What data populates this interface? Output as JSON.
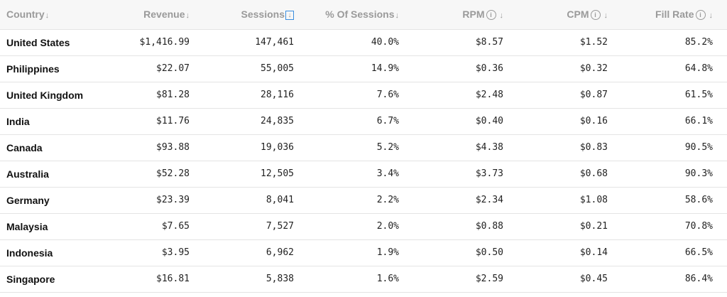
{
  "columns": [
    {
      "label": "Country",
      "sort_icon": "arrow-down-icon",
      "info": false
    },
    {
      "label": "Revenue",
      "sort_icon": "arrow-down-icon",
      "info": false
    },
    {
      "label": "Sessions",
      "sort_icon": "boxed-arrow-down-icon",
      "info": false
    },
    {
      "label": "% Of Sessions",
      "sort_icon": "arrow-down-icon",
      "info": false
    },
    {
      "label": "RPM",
      "sort_icon": "arrow-down-icon",
      "info": true
    },
    {
      "label": "CPM",
      "sort_icon": "arrow-down-icon",
      "info": true
    },
    {
      "label": "Fill Rate",
      "sort_icon": "arrow-down-icon",
      "info": true
    }
  ],
  "glyphs": {
    "arrow": "↓",
    "info": "i"
  },
  "rows": [
    {
      "country": "United States",
      "revenue": "$1,416.99",
      "sessions": "147,461",
      "pct_sessions": "40.0%",
      "rpm": "$8.57",
      "cpm": "$1.52",
      "fill_rate": "85.2%"
    },
    {
      "country": "Philippines",
      "revenue": "$22.07",
      "sessions": "55,005",
      "pct_sessions": "14.9%",
      "rpm": "$0.36",
      "cpm": "$0.32",
      "fill_rate": "64.8%"
    },
    {
      "country": "United Kingdom",
      "revenue": "$81.28",
      "sessions": "28,116",
      "pct_sessions": "7.6%",
      "rpm": "$2.48",
      "cpm": "$0.87",
      "fill_rate": "61.5%"
    },
    {
      "country": "India",
      "revenue": "$11.76",
      "sessions": "24,835",
      "pct_sessions": "6.7%",
      "rpm": "$0.40",
      "cpm": "$0.16",
      "fill_rate": "66.1%"
    },
    {
      "country": "Canada",
      "revenue": "$93.88",
      "sessions": "19,036",
      "pct_sessions": "5.2%",
      "rpm": "$4.38",
      "cpm": "$0.83",
      "fill_rate": "90.5%"
    },
    {
      "country": "Australia",
      "revenue": "$52.28",
      "sessions": "12,505",
      "pct_sessions": "3.4%",
      "rpm": "$3.73",
      "cpm": "$0.68",
      "fill_rate": "90.3%"
    },
    {
      "country": "Germany",
      "revenue": "$23.39",
      "sessions": "8,041",
      "pct_sessions": "2.2%",
      "rpm": "$2.34",
      "cpm": "$1.08",
      "fill_rate": "58.6%"
    },
    {
      "country": "Malaysia",
      "revenue": "$7.65",
      "sessions": "7,527",
      "pct_sessions": "2.0%",
      "rpm": "$0.88",
      "cpm": "$0.21",
      "fill_rate": "70.8%"
    },
    {
      "country": "Indonesia",
      "revenue": "$3.95",
      "sessions": "6,962",
      "pct_sessions": "1.9%",
      "rpm": "$0.50",
      "cpm": "$0.14",
      "fill_rate": "66.5%"
    },
    {
      "country": "Singapore",
      "revenue": "$16.81",
      "sessions": "5,838",
      "pct_sessions": "1.6%",
      "rpm": "$2.59",
      "cpm": "$0.45",
      "fill_rate": "86.4%"
    }
  ],
  "colors": {
    "header_text": "#9a9a9a",
    "header_bg": "#f7f7f7",
    "row_border": "#e4e4e4",
    "sort_box": "#3a8dde"
  }
}
